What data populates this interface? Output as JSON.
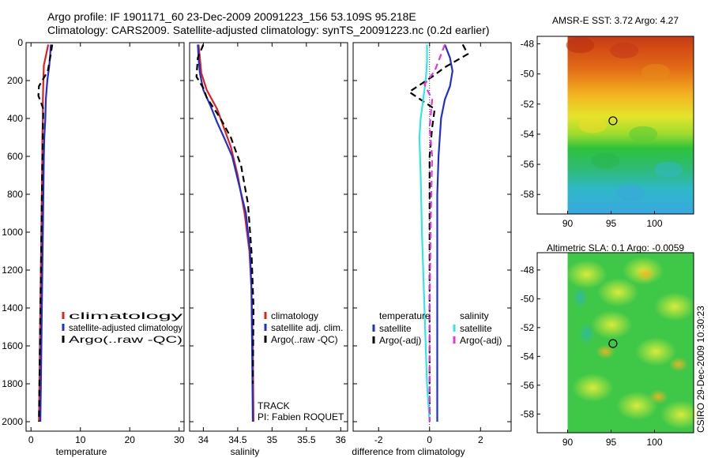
{
  "figure": {
    "title_line1": "Argo profile: IF 1901171_60 23-Dec-2009 20091223_156 53.109S 95.218E",
    "title_line2": "Climatology: CARS2009. Satellite-adjusted climatology: synTS_20091223.nc (0.2d earlier)",
    "stamp": "CSIRO 29-Dec-2009 10:30:23",
    "colors": {
      "climatology": "#e02020",
      "satellite": "#1f2fd0",
      "argo": "#000000",
      "sal_satellite": "#33e6e6",
      "sal_argo": "#e633e6"
    }
  },
  "chart_data": [
    {
      "type": "line",
      "id": "temperature",
      "xlabel": "temperature",
      "ylabel": "",
      "xlim": [
        -1,
        31
      ],
      "ylim": [
        2050,
        0
      ],
      "xticks": [
        0,
        10,
        20,
        30
      ],
      "yticks": [
        0,
        200,
        400,
        600,
        800,
        1000,
        1200,
        1400,
        1600,
        1800,
        2000
      ],
      "grid": false,
      "legend_position": "lower-middle",
      "series": [
        {
          "name": "climatology",
          "style": "solid",
          "color": "#e02020",
          "x": [
            3.5,
            3.1,
            2.6,
            2.5,
            2.4,
            2.4,
            2.3,
            2.3,
            2.2,
            2.1,
            2.0,
            1.9,
            1.8,
            1.7,
            1.6
          ],
          "y": [
            10,
            60,
            120,
            200,
            300,
            400,
            500,
            600,
            800,
            1000,
            1200,
            1400,
            1600,
            1800,
            2000
          ]
        },
        {
          "name": "satellite-adjusted climatology",
          "style": "solid",
          "color": "#1f2fd0",
          "x": [
            4.0,
            3.9,
            3.7,
            3.3,
            3.0,
            2.9,
            2.7,
            2.6,
            2.5,
            2.4,
            2.3,
            2.2,
            2.1,
            2.0,
            1.9
          ],
          "y": [
            10,
            60,
            120,
            200,
            300,
            400,
            500,
            600,
            800,
            1000,
            1200,
            1400,
            1600,
            1800,
            2000
          ]
        },
        {
          "name": "Argo(..raw -QC)",
          "style": "dashed",
          "color": "#000000",
          "x": [
            4.3,
            4.0,
            3.4,
            1.6,
            1.5,
            2.5,
            2.4,
            2.3,
            2.2,
            2.1,
            2.0,
            1.9,
            1.8,
            1.7,
            1.6
          ],
          "y": [
            10,
            60,
            150,
            230,
            280,
            350,
            450,
            600,
            800,
            1000,
            1200,
            1400,
            1600,
            1800,
            2000
          ]
        }
      ]
    },
    {
      "type": "line",
      "id": "salinity",
      "xlabel": "salinity",
      "ylabel": "",
      "xlim": [
        33.8,
        36.1
      ],
      "ylim": [
        2050,
        0
      ],
      "xticks": [
        34,
        34.5,
        35,
        35.5,
        36
      ],
      "grid": false,
      "legend_position": "lower-middle",
      "annotations": [
        "TRACK",
        "PI: Fabien ROQUET"
      ],
      "series": [
        {
          "name": "climatology",
          "style": "solid",
          "color": "#e02020",
          "x": [
            33.93,
            33.95,
            33.97,
            34.05,
            34.2,
            34.3,
            34.4,
            34.5,
            34.6,
            34.67,
            34.7,
            34.72,
            34.73
          ],
          "y": [
            10,
            80,
            160,
            250,
            350,
            450,
            550,
            700,
            900,
            1100,
            1300,
            1600,
            2000
          ]
        },
        {
          "name": "satellite adj. clim.",
          "style": "solid",
          "color": "#1f2fd0",
          "x": [
            33.92,
            33.93,
            33.95,
            34.0,
            34.1,
            34.2,
            34.3,
            34.42,
            34.52,
            34.62,
            34.68,
            34.7,
            34.71,
            34.72
          ],
          "y": [
            10,
            80,
            160,
            250,
            330,
            420,
            500,
            600,
            750,
            900,
            1100,
            1300,
            1600,
            2000
          ]
        },
        {
          "name": "Argo(..raw -QC)",
          "style": "dashed",
          "color": "#000000",
          "x": [
            34.0,
            33.92,
            33.9,
            34.0,
            34.05,
            34.25,
            34.4,
            34.55,
            34.65,
            34.7,
            34.73,
            34.72
          ],
          "y": [
            10,
            80,
            180,
            240,
            290,
            400,
            500,
            650,
            850,
            1100,
            1400,
            1800
          ]
        }
      ]
    },
    {
      "type": "line",
      "id": "difference",
      "xlabel": "difference from climatology",
      "ylabel": "",
      "xlim": [
        -3,
        3.2
      ],
      "ylim": [
        2050,
        0
      ],
      "xticks": [
        -2,
        0,
        2
      ],
      "grid": false,
      "legend_position": "lower-middle",
      "legend_headers": [
        "temperature",
        "salinity"
      ],
      "series": [
        {
          "name": "satellite",
          "group": "temperature",
          "style": "solid",
          "color": "#1f2fd0",
          "x": [
            0.6,
            0.8,
            0.9,
            0.8,
            0.6,
            0.45,
            0.4,
            0.35,
            0.3,
            0.3,
            0.3,
            0.3,
            0.3
          ],
          "y": [
            10,
            80,
            150,
            230,
            300,
            400,
            500,
            600,
            800,
            1000,
            1400,
            1800,
            2000
          ]
        },
        {
          "name": "Argo(-adj)",
          "group": "temperature",
          "style": "dashed",
          "color": "#000000",
          "x": [
            1.3,
            1.5,
            0.6,
            0.1,
            -0.8,
            0.2,
            0.1,
            0.0,
            0.0,
            0.0,
            0.0,
            0.0
          ],
          "y": [
            10,
            60,
            130,
            180,
            260,
            350,
            450,
            600,
            800,
            1200,
            1600,
            2000
          ]
        },
        {
          "name": "satellite",
          "group": "salinity",
          "style": "solid",
          "color": "#33e6e6",
          "x": [
            -0.1,
            -0.1,
            -0.15,
            -0.25,
            -0.35,
            -0.4,
            -0.35,
            -0.3,
            -0.2,
            -0.1,
            0.0
          ],
          "y": [
            10,
            100,
            200,
            300,
            400,
            500,
            700,
            1000,
            1400,
            1800,
            2000
          ]
        },
        {
          "name": "Argo(-adj)",
          "group": "salinity",
          "style": "dashed",
          "color": "#e633e6",
          "x": [
            0.6,
            0.4,
            0.2,
            -0.2,
            0.1,
            0.0,
            0.1,
            0.05,
            0.0,
            0.0
          ],
          "y": [
            10,
            80,
            150,
            220,
            300,
            450,
            600,
            900,
            1400,
            2000
          ]
        }
      ]
    }
  ],
  "maps": [
    {
      "title": "AMSR-E SST: 3.72  Argo: 4.27",
      "xlim": [
        86.5,
        104.5
      ],
      "ylim": [
        -59.3,
        -47.5
      ],
      "xticks": [
        90,
        95,
        100
      ],
      "yticks": [
        -48,
        -50,
        -52,
        -54,
        -56,
        -58
      ],
      "data_xmin": 90,
      "marker": {
        "lon": 95.218,
        "lat": -53.109
      }
    },
    {
      "title": "Altimetric SLA: 0.1  Argo: -0.0059",
      "xlim": [
        86.5,
        104.5
      ],
      "ylim": [
        -59.3,
        -46.8
      ],
      "xticks": [
        90,
        95,
        100
      ],
      "yticks": [
        -48,
        -50,
        -52,
        -54,
        -56,
        -58
      ],
      "data_xmin": 90,
      "marker": {
        "lon": 95.218,
        "lat": -53.109
      }
    }
  ]
}
